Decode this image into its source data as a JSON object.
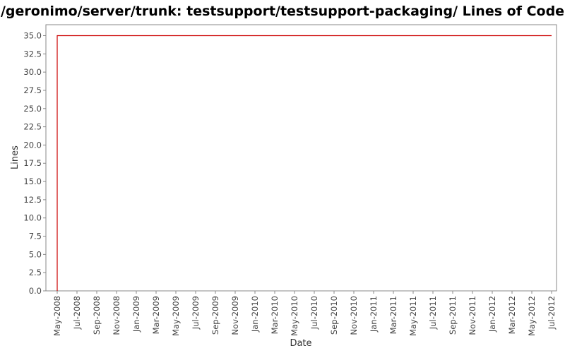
{
  "chart_data": {
    "type": "line",
    "title": "/geronimo/server/trunk: testsupport/testsupport-packaging/ Lines of Code",
    "xlabel": "Date",
    "ylabel": "Lines",
    "ylim": [
      0,
      36.5
    ],
    "yticks": [
      "0.0",
      "2.5",
      "5.0",
      "7.5",
      "10.0",
      "12.5",
      "15.0",
      "17.5",
      "20.0",
      "22.5",
      "25.0",
      "27.5",
      "30.0",
      "32.5",
      "35.0"
    ],
    "xticks": [
      "May-2008",
      "Jul-2008",
      "Sep-2008",
      "Nov-2008",
      "Jan-2009",
      "Mar-2009",
      "May-2009",
      "Jul-2009",
      "Sep-2009",
      "Nov-2009",
      "Jan-2010",
      "Mar-2010",
      "May-2010",
      "Jul-2010",
      "Sep-2010",
      "Nov-2010",
      "Jan-2011",
      "Mar-2011",
      "May-2011",
      "Jul-2011",
      "Sep-2011",
      "Nov-2011",
      "Jan-2012",
      "Mar-2012",
      "May-2012",
      "Jul-2012"
    ],
    "grid": false,
    "series": [
      {
        "color": "#cc0000",
        "x": [
          "May-2008",
          "May-2008",
          "Jul-2012"
        ],
        "y": [
          0,
          35,
          35
        ]
      }
    ]
  }
}
